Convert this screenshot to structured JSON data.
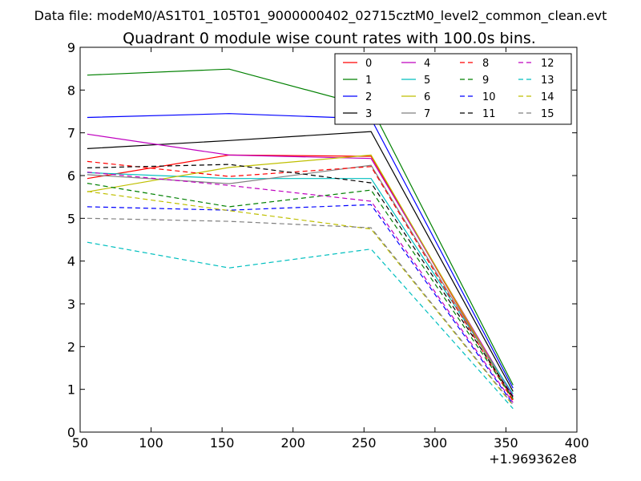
{
  "header": {
    "file_text": "Data file: modeM0/AS1T01_105T01_9000000402_02715cztM0_level2_common_clean.evt"
  },
  "chart_data": {
    "type": "line",
    "title": "Quadrant 0 module wise count rates with 100.0s bins.",
    "xlabel": "",
    "ylabel": "",
    "x_offset_label": "+1.969362e8",
    "xlim": [
      50,
      400
    ],
    "ylim": [
      0,
      9
    ],
    "xticks": [
      50,
      100,
      150,
      200,
      250,
      300,
      350,
      400
    ],
    "xtick_labels": [
      "50",
      "100",
      "150",
      "200",
      "250",
      "300",
      "350",
      "400"
    ],
    "yticks": [
      0,
      1,
      2,
      3,
      4,
      5,
      6,
      7,
      8,
      9
    ],
    "ytick_labels": [
      "0",
      "1",
      "2",
      "3",
      "4",
      "5",
      "6",
      "7",
      "8",
      "9"
    ],
    "grid": false,
    "legend_position": "top-right",
    "x": [
      55,
      155,
      255,
      355
    ],
    "series": [
      {
        "name": "0",
        "color": "#ff0000",
        "dash": "solid",
        "values": [
          5.93,
          6.48,
          6.45,
          0.75
        ]
      },
      {
        "name": "1",
        "color": "#008000",
        "dash": "solid",
        "values": [
          8.35,
          8.49,
          7.6,
          1.1
        ]
      },
      {
        "name": "2",
        "color": "#0000ff",
        "dash": "solid",
        "values": [
          7.36,
          7.45,
          7.33,
          1.03
        ]
      },
      {
        "name": "3",
        "color": "#000000",
        "dash": "solid",
        "values": [
          6.63,
          6.82,
          7.03,
          0.95
        ]
      },
      {
        "name": "4",
        "color": "#bf00bf",
        "dash": "solid",
        "values": [
          6.97,
          6.48,
          6.4,
          0.84
        ]
      },
      {
        "name": "5",
        "color": "#00bfbf",
        "dash": "solid",
        "values": [
          6.07,
          5.93,
          5.93,
          0.89
        ]
      },
      {
        "name": "6",
        "color": "#bfbf00",
        "dash": "solid",
        "values": [
          5.62,
          6.19,
          6.48,
          0.77
        ]
      },
      {
        "name": "7",
        "color": "#808080",
        "dash": "solid",
        "values": [
          6.02,
          5.81,
          6.24,
          0.79
        ]
      },
      {
        "name": "8",
        "color": "#ff0000",
        "dash": "dashed",
        "values": [
          6.33,
          5.98,
          6.21,
          0.72
        ]
      },
      {
        "name": "9",
        "color": "#008000",
        "dash": "dashed",
        "values": [
          5.82,
          5.27,
          5.66,
          0.78
        ]
      },
      {
        "name": "10",
        "color": "#0000ff",
        "dash": "dashed",
        "values": [
          5.27,
          5.19,
          5.32,
          0.66
        ]
      },
      {
        "name": "11",
        "color": "#000000",
        "dash": "dashed",
        "values": [
          6.18,
          6.26,
          5.83,
          0.82
        ]
      },
      {
        "name": "12",
        "color": "#bf00bf",
        "dash": "dashed",
        "values": [
          6.08,
          5.77,
          5.4,
          0.69
        ]
      },
      {
        "name": "13",
        "color": "#00bfbf",
        "dash": "dashed",
        "values": [
          4.44,
          3.84,
          4.28,
          0.55
        ]
      },
      {
        "name": "14",
        "color": "#bfbf00",
        "dash": "dashed",
        "values": [
          5.63,
          5.18,
          4.75,
          0.62
        ]
      },
      {
        "name": "15",
        "color": "#808080",
        "dash": "dashed",
        "values": [
          5.0,
          4.93,
          4.78,
          0.64
        ]
      }
    ]
  }
}
